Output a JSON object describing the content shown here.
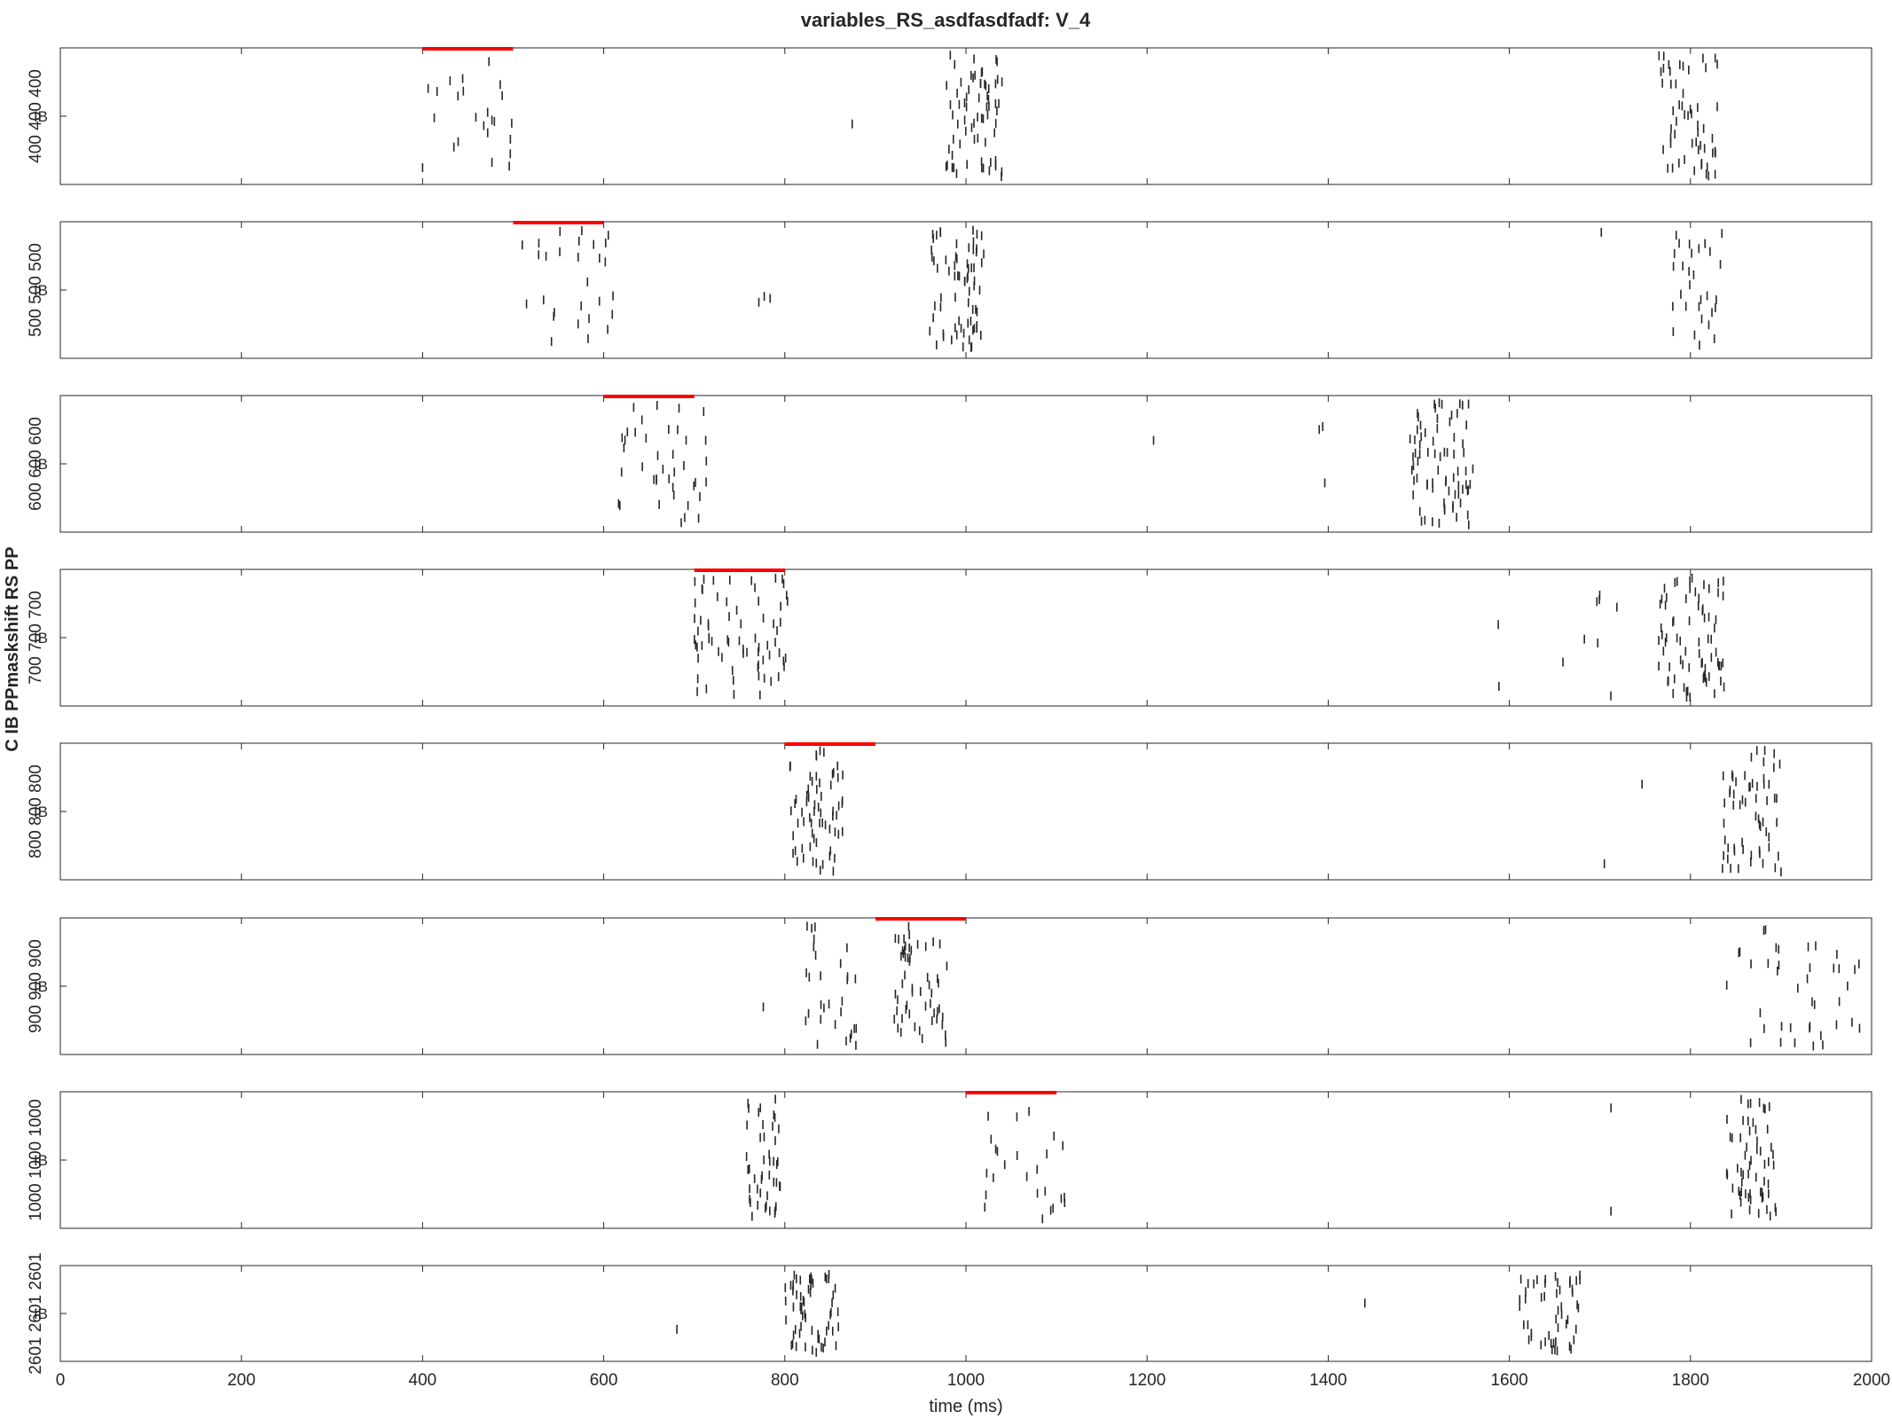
{
  "figure": {
    "title": "variables_RS_asdfasdfadf: V_4",
    "group_ylabel": "C IB PPmaskshift RS PP"
  },
  "chart_data": {
    "type": "raster",
    "title": "variables_RS_asdfasdfadf: V_4",
    "xlabel": "time (ms)",
    "xlim": [
      0,
      2000
    ],
    "xticks": [
      0,
      200,
      400,
      600,
      800,
      1000,
      1200,
      1400,
      1600,
      1800,
      2000
    ],
    "grid": false,
    "colors": {
      "spike": "#262626",
      "stimulus_bar": "#ff0000",
      "axis": "#262626"
    },
    "panels": [
      {
        "ylabel": "400 400 400",
        "ib_label": "IB",
        "stimulus": [
          400,
          500
        ],
        "clusters": [
          {
            "x0": 400,
            "x1": 505,
            "n": 24
          },
          {
            "x0": 978,
            "x1": 1040,
            "n": 70
          },
          {
            "x0": 1765,
            "x1": 1830,
            "n": 55
          },
          {
            "x0": 870,
            "x1": 875,
            "n": 1
          }
        ]
      },
      {
        "ylabel": "500 500 500",
        "ib_label": "IB",
        "stimulus": [
          500,
          600
        ],
        "clusters": [
          {
            "x0": 510,
            "x1": 615,
            "n": 28
          },
          {
            "x0": 960,
            "x1": 1020,
            "n": 70
          },
          {
            "x0": 765,
            "x1": 785,
            "n": 3
          },
          {
            "x0": 1775,
            "x1": 1835,
            "n": 30
          },
          {
            "x0": 1700,
            "x1": 1705,
            "n": 1
          }
        ]
      },
      {
        "ylabel": "600 600 600",
        "ib_label": "IB",
        "stimulus": [
          600,
          700
        ],
        "clusters": [
          {
            "x0": 615,
            "x1": 715,
            "n": 40
          },
          {
            "x0": 1490,
            "x1": 1560,
            "n": 75
          },
          {
            "x0": 1205,
            "x1": 1210,
            "n": 1
          },
          {
            "x0": 1390,
            "x1": 1400,
            "n": 3
          }
        ]
      },
      {
        "ylabel": "700 700 700",
        "ib_label": "IB",
        "stimulus": [
          700,
          800
        ],
        "clusters": [
          {
            "x0": 700,
            "x1": 805,
            "n": 70
          },
          {
            "x0": 1765,
            "x1": 1840,
            "n": 75
          },
          {
            "x0": 1580,
            "x1": 1720,
            "n": 10
          }
        ]
      },
      {
        "ylabel": "800 800 800",
        "ib_label": "IB",
        "stimulus": [
          800,
          900
        ],
        "clusters": [
          {
            "x0": 805,
            "x1": 865,
            "n": 65
          },
          {
            "x0": 1835,
            "x1": 1900,
            "n": 60
          },
          {
            "x0": 1700,
            "x1": 1760,
            "n": 2
          }
        ]
      },
      {
        "ylabel": "900 900 900",
        "ib_label": "IB",
        "stimulus": [
          900,
          1000
        ],
        "clusters": [
          {
            "x0": 820,
            "x1": 880,
            "n": 30
          },
          {
            "x0": 920,
            "x1": 980,
            "n": 55
          },
          {
            "x0": 1840,
            "x1": 1990,
            "n": 40
          },
          {
            "x0": 775,
            "x1": 780,
            "n": 1
          }
        ]
      },
      {
        "ylabel": "1000 1000 1000",
        "ib_label": "IB",
        "stimulus": [
          1000,
          1100
        ],
        "clusters": [
          {
            "x0": 755,
            "x1": 795,
            "n": 45
          },
          {
            "x0": 1020,
            "x1": 1110,
            "n": 25
          },
          {
            "x0": 1840,
            "x1": 1895,
            "n": 60
          },
          {
            "x0": 1705,
            "x1": 1715,
            "n": 2
          }
        ]
      },
      {
        "ylabel": "2601 2601 2601",
        "ib_label": "IB",
        "stimulus": null,
        "clusters": [
          {
            "x0": 800,
            "x1": 860,
            "n": 60
          },
          {
            "x0": 1610,
            "x1": 1680,
            "n": 50
          },
          {
            "x0": 680,
            "x1": 685,
            "n": 1
          },
          {
            "x0": 1440,
            "x1": 1445,
            "n": 1
          }
        ]
      }
    ]
  }
}
